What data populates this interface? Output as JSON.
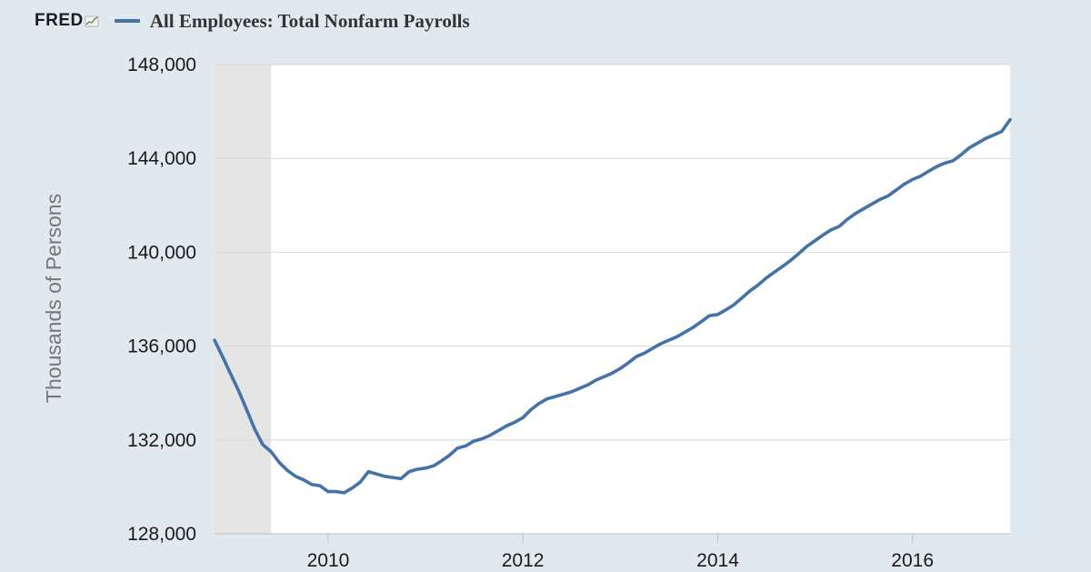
{
  "header": {
    "logo": "FRED",
    "legend_label": "All Employees: Total Nonfarm Payrolls"
  },
  "colors": {
    "background": "#e1e9f0",
    "plot_background": "#ffffff",
    "recession_shade": "#e5e5e5",
    "series": "#4572a7",
    "grid": "#d8d8d8"
  },
  "chart_data": {
    "type": "line",
    "title": "",
    "xlabel": "",
    "ylabel": "Thousands of Persons",
    "xlim": [
      "2008-11-01",
      "2017-01-01"
    ],
    "ylim": [
      128000,
      148000
    ],
    "yticks": [
      128000,
      132000,
      136000,
      140000,
      144000,
      148000
    ],
    "ytick_labels": [
      "128,000",
      "132,000",
      "136,000",
      "140,000",
      "144,000",
      "148,000"
    ],
    "xticks": [
      "2010-01-01",
      "2012-01-01",
      "2014-01-01",
      "2016-01-01"
    ],
    "xtick_labels": [
      "2010",
      "2012",
      "2014",
      "2016"
    ],
    "grid": true,
    "legend": "top-left",
    "recession_shading": [
      {
        "start": "2008-11-01",
        "end": "2009-06-01"
      }
    ],
    "series": [
      {
        "name": "All Employees: Total Nonfarm Payrolls",
        "x": [
          "2008-11",
          "2008-12",
          "2009-01",
          "2009-02",
          "2009-03",
          "2009-04",
          "2009-05",
          "2009-06",
          "2009-07",
          "2009-08",
          "2009-09",
          "2009-10",
          "2009-11",
          "2009-12",
          "2010-01",
          "2010-02",
          "2010-03",
          "2010-04",
          "2010-05",
          "2010-06",
          "2010-07",
          "2010-08",
          "2010-09",
          "2010-10",
          "2010-11",
          "2010-12",
          "2011-01",
          "2011-02",
          "2011-03",
          "2011-04",
          "2011-05",
          "2011-06",
          "2011-07",
          "2011-08",
          "2011-09",
          "2011-10",
          "2011-11",
          "2011-12",
          "2012-01",
          "2012-02",
          "2012-03",
          "2012-04",
          "2012-05",
          "2012-06",
          "2012-07",
          "2012-08",
          "2012-09",
          "2012-10",
          "2012-11",
          "2012-12",
          "2013-01",
          "2013-02",
          "2013-03",
          "2013-04",
          "2013-05",
          "2013-06",
          "2013-07",
          "2013-08",
          "2013-09",
          "2013-10",
          "2013-11",
          "2013-12",
          "2014-01",
          "2014-02",
          "2014-03",
          "2014-04",
          "2014-05",
          "2014-06",
          "2014-07",
          "2014-08",
          "2014-09",
          "2014-10",
          "2014-11",
          "2014-12",
          "2015-01",
          "2015-02",
          "2015-03",
          "2015-04",
          "2015-05",
          "2015-06",
          "2015-07",
          "2015-08",
          "2015-09",
          "2015-10",
          "2015-11",
          "2015-12",
          "2016-01",
          "2016-02",
          "2016-03",
          "2016-04",
          "2016-05",
          "2016-06",
          "2016-07",
          "2016-08",
          "2016-09",
          "2016-10",
          "2016-11",
          "2016-12",
          "2017-01"
        ],
        "values": [
          136250,
          135550,
          134800,
          134050,
          133300,
          132450,
          131800,
          131500,
          131050,
          130700,
          130450,
          130300,
          130100,
          130050,
          129800,
          129800,
          129750,
          129950,
          130200,
          130650,
          130550,
          130450,
          130400,
          130350,
          130650,
          130750,
          130800,
          130900,
          131100,
          131350,
          131650,
          131750,
          131950,
          132050,
          132200,
          132400,
          132600,
          132750,
          132950,
          133300,
          133550,
          133750,
          133850,
          133950,
          134050,
          134200,
          134350,
          134550,
          134700,
          134850,
          135050,
          135300,
          135550,
          135700,
          135900,
          136100,
          136250,
          136400,
          136600,
          136800,
          137050,
          137300,
          137350,
          137550,
          137750,
          138050,
          138350,
          138600,
          138900,
          139150,
          139400,
          139650,
          139950,
          140250,
          140500,
          140750,
          140950,
          141100,
          141400,
          141650,
          141850,
          142050,
          142250,
          142400,
          142650,
          142900,
          143100,
          143250,
          143450,
          143650,
          143800,
          143900,
          144150,
          144450,
          144650,
          144850,
          145000,
          145150,
          145650
        ]
      }
    ]
  }
}
